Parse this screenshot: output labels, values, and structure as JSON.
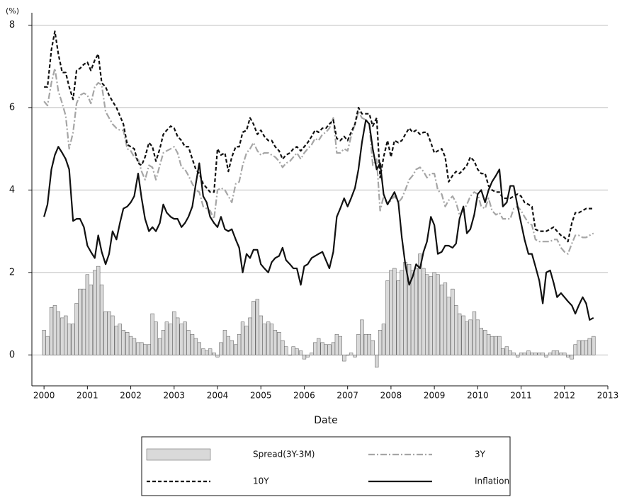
{
  "chart_data": {
    "type": "combo",
    "y_unit_label": "(%)",
    "x_label": "Date",
    "xlim": [
      1999.72,
      2013.0
    ],
    "xticks": [
      2000,
      2001,
      2002,
      2003,
      2004,
      2005,
      2006,
      2007,
      2008,
      2009,
      2010,
      2011,
      2012,
      2013
    ],
    "ylim": [
      -0.75,
      8.3
    ],
    "yticks": [
      0,
      2,
      4,
      6,
      8
    ],
    "grid": true,
    "legend": "bottom",
    "x": [
      2000.0,
      2000.08,
      2000.17,
      2000.25,
      2000.33,
      2000.42,
      2000.5,
      2000.58,
      2000.67,
      2000.75,
      2000.83,
      2000.92,
      2001.0,
      2001.08,
      2001.17,
      2001.25,
      2001.33,
      2001.42,
      2001.5,
      2001.58,
      2001.67,
      2001.75,
      2001.83,
      2001.92,
      2002.0,
      2002.08,
      2002.17,
      2002.25,
      2002.33,
      2002.42,
      2002.5,
      2002.58,
      2002.67,
      2002.75,
      2002.83,
      2002.92,
      2003.0,
      2003.08,
      2003.17,
      2003.25,
      2003.33,
      2003.42,
      2003.5,
      2003.58,
      2003.67,
      2003.75,
      2003.83,
      2003.92,
      2004.0,
      2004.08,
      2004.17,
      2004.25,
      2004.33,
      2004.42,
      2004.5,
      2004.58,
      2004.67,
      2004.75,
      2004.83,
      2004.92,
      2005.0,
      2005.08,
      2005.17,
      2005.25,
      2005.33,
      2005.42,
      2005.5,
      2005.58,
      2005.67,
      2005.75,
      2005.83,
      2005.92,
      2006.0,
      2006.08,
      2006.17,
      2006.25,
      2006.33,
      2006.42,
      2006.5,
      2006.58,
      2006.67,
      2006.75,
      2006.83,
      2006.92,
      2007.0,
      2007.08,
      2007.17,
      2007.25,
      2007.33,
      2007.42,
      2007.5,
      2007.58,
      2007.67,
      2007.75,
      2007.83,
      2007.92,
      2008.0,
      2008.08,
      2008.17,
      2008.25,
      2008.33,
      2008.42,
      2008.5,
      2008.58,
      2008.67,
      2008.75,
      2008.83,
      2008.92,
      2009.0,
      2009.08,
      2009.17,
      2009.25,
      2009.33,
      2009.42,
      2009.5,
      2009.58,
      2009.67,
      2009.75,
      2009.83,
      2009.92,
      2010.0,
      2010.08,
      2010.17,
      2010.25,
      2010.33,
      2010.42,
      2010.5,
      2010.58,
      2010.67,
      2010.75,
      2010.83,
      2010.92,
      2011.0,
      2011.08,
      2011.17,
      2011.25,
      2011.33,
      2011.42,
      2011.5,
      2011.58,
      2011.67,
      2011.75,
      2011.83,
      2011.92,
      2012.0,
      2012.08,
      2012.17,
      2012.25,
      2012.33,
      2012.42,
      2012.5,
      2012.58,
      2012.67
    ],
    "series": [
      {
        "name": "Spread(3Y-3M)",
        "type": "bar",
        "color": "#d9d9d9",
        "values": [
          0.6,
          0.45,
          1.15,
          1.2,
          1.05,
          0.9,
          0.95,
          0.75,
          0.75,
          1.25,
          1.6,
          1.6,
          1.95,
          1.7,
          2.05,
          2.15,
          1.7,
          1.05,
          1.05,
          0.95,
          0.7,
          0.75,
          0.6,
          0.55,
          0.45,
          0.4,
          0.3,
          0.3,
          0.25,
          0.25,
          1.0,
          0.8,
          0.4,
          0.6,
          0.8,
          0.75,
          1.05,
          0.9,
          0.75,
          0.8,
          0.6,
          0.5,
          0.4,
          0.3,
          0.15,
          0.1,
          0.15,
          0.05,
          -0.05,
          0.3,
          0.6,
          0.45,
          0.35,
          0.25,
          0.5,
          0.8,
          0.7,
          0.9,
          1.3,
          1.35,
          0.95,
          0.75,
          0.8,
          0.75,
          0.6,
          0.55,
          0.35,
          0.2,
          0.0,
          0.2,
          0.15,
          0.1,
          -0.1,
          -0.05,
          0.05,
          0.3,
          0.4,
          0.3,
          0.25,
          0.25,
          0.3,
          0.5,
          0.45,
          -0.15,
          0.0,
          0.05,
          -0.05,
          0.5,
          0.85,
          0.5,
          0.5,
          0.35,
          -0.3,
          0.6,
          0.75,
          1.8,
          2.05,
          2.1,
          1.8,
          2.05,
          2.25,
          2.2,
          2.05,
          2.1,
          2.45,
          2.1,
          1.95,
          1.9,
          2.0,
          1.95,
          1.7,
          1.75,
          1.4,
          1.6,
          1.2,
          1.0,
          0.95,
          0.8,
          0.85,
          1.05,
          0.85,
          0.65,
          0.6,
          0.5,
          0.45,
          0.45,
          0.45,
          0.15,
          0.2,
          0.1,
          0.05,
          -0.05,
          0.05,
          0.05,
          0.1,
          0.05,
          0.05,
          0.05,
          0.05,
          -0.05,
          0.05,
          0.1,
          0.1,
          0.05,
          0.05,
          -0.05,
          -0.1,
          0.25,
          0.35,
          0.35,
          0.35,
          0.4,
          0.45
        ]
      },
      {
        "name": "3Y",
        "type": "line",
        "color": "#a6a6a6",
        "dash": "9 3 2 3",
        "values": [
          6.15,
          6.05,
          6.6,
          6.95,
          6.4,
          6.1,
          5.8,
          5.0,
          5.4,
          6.1,
          6.3,
          6.35,
          6.3,
          6.1,
          6.5,
          6.6,
          6.55,
          5.9,
          5.75,
          5.6,
          5.5,
          5.45,
          5.45,
          5.0,
          4.95,
          4.8,
          4.75,
          4.45,
          4.25,
          4.6,
          4.55,
          4.25,
          4.6,
          4.9,
          4.95,
          5.0,
          5.05,
          4.9,
          4.55,
          4.5,
          4.35,
          4.15,
          4.0,
          3.95,
          3.6,
          3.55,
          3.5,
          3.3,
          4.0,
          4.05,
          4.0,
          3.85,
          3.7,
          4.15,
          4.2,
          4.6,
          4.9,
          5.0,
          5.15,
          4.95,
          4.85,
          4.9,
          4.9,
          4.85,
          4.8,
          4.7,
          4.55,
          4.65,
          4.7,
          4.8,
          4.9,
          4.75,
          4.9,
          5.0,
          5.1,
          5.25,
          5.2,
          5.35,
          5.4,
          5.5,
          5.75,
          4.9,
          4.9,
          5.0,
          4.95,
          5.3,
          5.6,
          5.9,
          5.75,
          5.7,
          5.6,
          4.6,
          4.75,
          3.5,
          3.85,
          3.65,
          3.75,
          3.85,
          3.7,
          3.8,
          4.0,
          4.25,
          4.35,
          4.5,
          4.55,
          4.45,
          4.3,
          4.4,
          4.4,
          4.0,
          3.9,
          3.6,
          3.75,
          3.85,
          3.7,
          3.4,
          3.5,
          3.65,
          3.85,
          3.95,
          3.9,
          3.6,
          3.55,
          3.8,
          3.5,
          3.4,
          3.45,
          3.3,
          3.3,
          3.3,
          3.55,
          3.6,
          3.5,
          3.35,
          3.2,
          3.15,
          2.8,
          2.75,
          2.75,
          2.75,
          2.75,
          2.8,
          2.8,
          2.6,
          2.5,
          2.45,
          2.7,
          2.9,
          2.9,
          2.85,
          2.85,
          2.9,
          2.95
        ]
      },
      {
        "name": "10Y",
        "type": "line",
        "color": "#111111",
        "dash": "5 3",
        "values": [
          6.5,
          6.5,
          7.4,
          7.85,
          7.3,
          6.85,
          6.85,
          6.5,
          6.2,
          6.9,
          6.95,
          7.05,
          7.1,
          6.9,
          7.15,
          7.3,
          6.6,
          6.5,
          6.3,
          6.15,
          6.0,
          5.8,
          5.6,
          5.1,
          5.05,
          5.0,
          4.65,
          4.6,
          4.8,
          5.15,
          5.05,
          4.7,
          5.0,
          5.35,
          5.45,
          5.55,
          5.5,
          5.3,
          5.2,
          5.05,
          5.05,
          4.75,
          4.5,
          4.4,
          4.15,
          4.05,
          3.95,
          3.95,
          5.0,
          4.85,
          4.9,
          4.45,
          4.8,
          5.05,
          5.05,
          5.4,
          5.45,
          5.75,
          5.6,
          5.35,
          5.45,
          5.3,
          5.2,
          5.2,
          5.05,
          4.95,
          4.75,
          4.85,
          4.9,
          5.0,
          5.05,
          4.95,
          5.05,
          5.15,
          5.3,
          5.45,
          5.4,
          5.5,
          5.5,
          5.6,
          5.7,
          5.25,
          5.2,
          5.3,
          5.2,
          5.4,
          5.6,
          6.0,
          5.85,
          5.85,
          5.85,
          5.55,
          5.75,
          4.3,
          4.8,
          5.2,
          4.8,
          5.2,
          5.15,
          5.2,
          5.35,
          5.5,
          5.4,
          5.45,
          5.35,
          5.4,
          5.4,
          5.15,
          4.9,
          4.95,
          5.0,
          4.8,
          4.2,
          4.35,
          4.45,
          4.4,
          4.5,
          4.6,
          4.8,
          4.7,
          4.5,
          4.4,
          4.4,
          4.1,
          4.0,
          3.95,
          3.95,
          3.8,
          3.8,
          3.8,
          3.85,
          3.9,
          3.85,
          3.7,
          3.65,
          3.6,
          3.05,
          3.0,
          3.0,
          3.0,
          3.05,
          3.1,
          3.0,
          2.9,
          2.85,
          2.75,
          3.2,
          3.45,
          3.45,
          3.5,
          3.55,
          3.55,
          3.55
        ]
      },
      {
        "name": "Inflation",
        "type": "line",
        "color": "#111111",
        "dash": "none",
        "values": [
          3.35,
          3.65,
          4.5,
          4.85,
          5.05,
          4.9,
          4.75,
          4.5,
          3.25,
          3.3,
          3.3,
          3.1,
          2.65,
          2.5,
          2.35,
          2.9,
          2.5,
          2.2,
          2.45,
          3.0,
          2.8,
          3.2,
          3.55,
          3.6,
          3.7,
          3.85,
          4.4,
          3.8,
          3.3,
          3.0,
          3.1,
          3.0,
          3.2,
          3.65,
          3.45,
          3.35,
          3.3,
          3.3,
          3.1,
          3.2,
          3.35,
          3.6,
          4.15,
          4.65,
          3.85,
          3.7,
          3.35,
          3.2,
          3.1,
          3.35,
          3.05,
          3.0,
          3.05,
          2.8,
          2.6,
          2.0,
          2.45,
          2.35,
          2.55,
          2.55,
          2.2,
          2.1,
          2.0,
          2.25,
          2.35,
          2.4,
          2.6,
          2.3,
          2.2,
          2.1,
          2.1,
          1.7,
          2.15,
          2.2,
          2.35,
          2.4,
          2.45,
          2.5,
          2.3,
          2.1,
          2.5,
          3.35,
          3.55,
          3.8,
          3.6,
          3.8,
          4.05,
          4.5,
          5.15,
          5.7,
          5.6,
          5.0,
          4.5,
          4.65,
          3.9,
          3.65,
          3.8,
          3.95,
          3.7,
          2.85,
          2.2,
          1.7,
          1.9,
          2.2,
          2.1,
          2.5,
          2.75,
          3.35,
          3.15,
          2.45,
          2.5,
          2.65,
          2.65,
          2.6,
          2.7,
          3.3,
          3.6,
          2.95,
          3.05,
          3.4,
          3.9,
          4.0,
          3.7,
          4.0,
          4.2,
          4.35,
          4.5,
          3.6,
          3.7,
          4.1,
          4.1,
          3.6,
          3.2,
          2.8,
          2.45,
          2.45,
          2.15,
          1.8,
          1.25,
          2.0,
          2.05,
          1.75,
          1.4,
          1.5,
          1.4,
          1.3,
          1.2,
          1.0,
          1.2,
          1.4,
          1.25,
          0.85,
          0.9
        ]
      }
    ]
  }
}
